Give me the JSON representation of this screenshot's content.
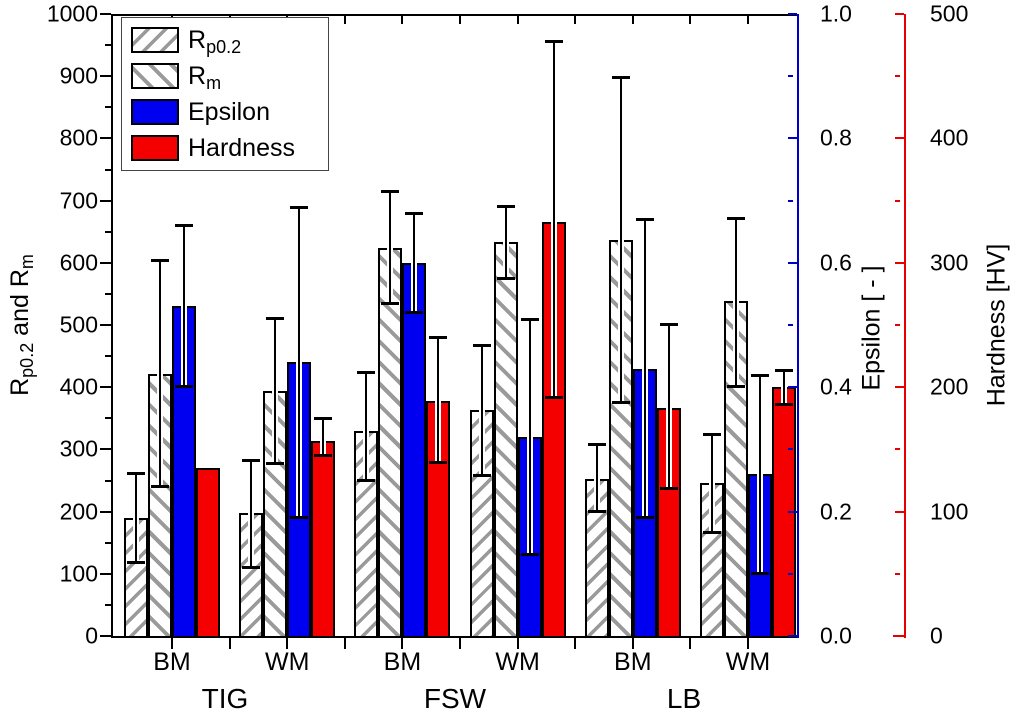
{
  "chart_data": {
    "type": "bar",
    "group_labels": [
      "BM",
      "WM",
      "BM",
      "WM",
      "BM",
      "WM"
    ],
    "section_labels": [
      "TIG",
      "FSW",
      "LB"
    ],
    "series": [
      {
        "name": "Rp0.2",
        "label_main": "R",
        "label_sub": "p0.2",
        "axis": "left",
        "style": "hatch-fwd",
        "values": [
          190,
          198,
          329,
          364,
          253,
          246
        ],
        "err_lo": [
          118,
          110,
          250,
          258,
          200,
          166
        ],
        "err_hi": [
          262,
          283,
          424,
          468,
          308,
          325
        ]
      },
      {
        "name": "Rm",
        "label_main": "R",
        "label_sub": "m",
        "axis": "left",
        "style": "hatch-back",
        "values": [
          422,
          394,
          623,
          633,
          636,
          538
        ],
        "err_lo": [
          240,
          277,
          534,
          574,
          374,
          400
        ],
        "err_hi": [
          604,
          511,
          716,
          692,
          898,
          672
        ]
      },
      {
        "name": "Epsilon",
        "label_main": "Epsilon",
        "axis": "epsilon",
        "style": "solid-blue",
        "values": [
          0.53,
          0.44,
          0.6,
          0.32,
          0.43,
          0.26
        ],
        "err_lo": [
          0.4,
          0.19,
          0.52,
          0.13,
          0.19,
          0.1
        ],
        "err_hi": [
          0.66,
          0.69,
          0.68,
          0.51,
          0.67,
          0.42
        ]
      },
      {
        "name": "Hardness",
        "label_main": "Hardness",
        "axis": "hardness",
        "style": "solid-red",
        "values": [
          135,
          157,
          189,
          333,
          183,
          200
        ],
        "err_lo": [
          null,
          145,
          139,
          191,
          118,
          186
        ],
        "err_hi": [
          null,
          175,
          240,
          478,
          251,
          214
        ]
      }
    ],
    "axes": {
      "left": {
        "title_segments": [
          {
            "t": "R"
          },
          {
            "t": "p0.2",
            "sub": true
          },
          {
            "t": " and R"
          },
          {
            "t": "m",
            "sub": true
          }
        ],
        "tick_labels": [
          "0",
          "100",
          "200",
          "300",
          "400",
          "500",
          "600",
          "700",
          "800",
          "900",
          "1000"
        ],
        "tick_values": [
          0,
          100,
          200,
          300,
          400,
          500,
          600,
          700,
          800,
          900,
          1000
        ],
        "range": [
          0,
          1000
        ],
        "minor_step": 50,
        "color": "#000000"
      },
      "epsilon": {
        "title": "Epsilon [ - ]",
        "tick_labels": [
          "0.0",
          "0.2",
          "0.4",
          "0.6",
          "0.8",
          "1.0"
        ],
        "tick_values": [
          0,
          0.2,
          0.4,
          0.6,
          0.8,
          1.0
        ],
        "range": [
          0,
          1
        ],
        "minor_step": 0.1,
        "color": "#0000cd"
      },
      "hardness": {
        "title": "Hardness [HV]",
        "tick_labels": [
          "0",
          "100",
          "200",
          "300",
          "400",
          "500"
        ],
        "tick_values": [
          0,
          100,
          200,
          300,
          400,
          500
        ],
        "range": [
          0,
          500
        ],
        "minor_step": 50,
        "color": "#e80000"
      }
    },
    "colors": {
      "epsilon_bar": "#0000f0",
      "hardness_bar": "#f40000",
      "hatch_line": "#9a9a9a",
      "error_bar": "#000000"
    },
    "legend_position": "top-left",
    "grid": false
  }
}
